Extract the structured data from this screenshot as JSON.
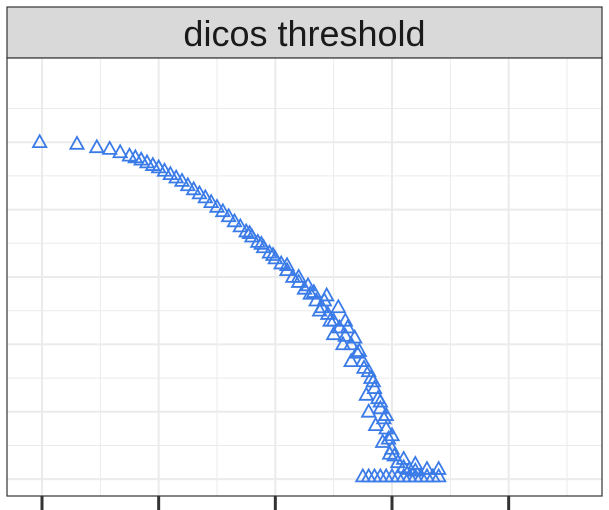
{
  "chart_data": {
    "type": "scatter",
    "panel_title": "dicos threshold",
    "marker": "open-triangle",
    "marker_color": "#3a7be8",
    "strip_background": "#d9d9d9",
    "panel_border_color": "#333333",
    "grid": true,
    "grid_color": "#ebebeb",
    "xlim": [
      -0.3,
      4.8
    ],
    "ylim": [
      -0.05,
      1.25
    ],
    "x_major_ticks": [
      0,
      1,
      2,
      3,
      4
    ],
    "x_minor_ticks": [
      0.5,
      1.5,
      2.5,
      3.5,
      4.5
    ],
    "y_major_ticks": [
      0,
      0.2,
      0.4,
      0.6,
      0.8,
      1.0
    ],
    "y_minor_ticks": [
      0.1,
      0.3,
      0.5,
      0.7,
      0.9,
      1.1
    ],
    "series": [
      {
        "points": [
          [
            -0.02,
            1.0
          ],
          [
            0.3,
            0.995
          ],
          [
            0.47,
            0.985
          ],
          [
            0.58,
            0.98
          ],
          [
            0.67,
            0.97
          ],
          [
            0.75,
            0.96
          ],
          [
            0.8,
            0.955
          ],
          [
            0.85,
            0.948
          ],
          [
            0.9,
            0.94
          ],
          [
            0.95,
            0.932
          ],
          [
            1.0,
            0.925
          ],
          [
            1.05,
            0.915
          ],
          [
            1.1,
            0.905
          ],
          [
            1.15,
            0.895
          ],
          [
            1.2,
            0.885
          ],
          [
            1.25,
            0.872
          ],
          [
            1.3,
            0.86
          ],
          [
            1.35,
            0.848
          ],
          [
            1.4,
            0.836
          ],
          [
            1.45,
            0.822
          ],
          [
            1.5,
            0.808
          ],
          [
            1.55,
            0.795
          ],
          [
            1.6,
            0.78
          ],
          [
            1.65,
            0.765
          ],
          [
            1.7,
            0.75
          ],
          [
            1.75,
            0.735
          ],
          [
            1.8,
            0.72
          ],
          [
            1.85,
            0.704
          ],
          [
            1.9,
            0.688
          ],
          [
            1.95,
            0.672
          ],
          [
            2.0,
            0.655
          ],
          [
            2.05,
            0.64
          ],
          [
            2.1,
            0.62
          ],
          [
            2.15,
            0.6
          ],
          [
            2.2,
            0.585
          ],
          [
            2.25,
            0.565
          ],
          [
            2.3,
            0.55
          ],
          [
            2.35,
            0.53
          ],
          [
            2.4,
            0.51
          ],
          [
            2.45,
            0.49
          ],
          [
            2.5,
            0.47
          ],
          [
            2.55,
            0.45
          ],
          [
            2.6,
            0.425
          ],
          [
            2.65,
            0.4
          ],
          [
            2.7,
            0.375
          ],
          [
            2.75,
            0.35
          ],
          [
            2.8,
            0.32
          ],
          [
            2.82,
            0.3
          ],
          [
            2.85,
            0.27
          ],
          [
            2.88,
            0.24
          ],
          [
            2.9,
            0.21
          ],
          [
            2.93,
            0.18
          ],
          [
            2.95,
            0.15
          ],
          [
            2.97,
            0.12
          ],
          [
            3.0,
            0.09
          ],
          [
            3.02,
            0.07
          ],
          [
            3.05,
            0.05
          ],
          [
            3.1,
            0.035
          ],
          [
            3.15,
            0.03
          ],
          [
            3.2,
            0.025
          ],
          [
            2.33,
            0.555
          ],
          [
            2.42,
            0.53
          ],
          [
            2.54,
            0.51
          ],
          [
            2.47,
            0.47
          ],
          [
            2.62,
            0.45
          ],
          [
            2.38,
            0.5
          ],
          [
            2.68,
            0.42
          ],
          [
            2.58,
            0.4
          ],
          [
            2.72,
            0.38
          ],
          [
            2.5,
            0.43
          ],
          [
            2.76,
            0.33
          ],
          [
            2.65,
            0.35
          ],
          [
            2.84,
            0.29
          ],
          [
            2.78,
            0.25
          ],
          [
            2.9,
            0.23
          ],
          [
            2.8,
            0.2
          ],
          [
            2.95,
            0.19
          ],
          [
            2.86,
            0.16
          ],
          [
            3.0,
            0.13
          ],
          [
            2.92,
            0.11
          ],
          [
            2.98,
            0.075
          ],
          [
            3.1,
            0.06
          ],
          [
            3.2,
            0.045
          ],
          [
            3.3,
            0.03
          ],
          [
            3.4,
            0.03
          ],
          [
            2.2,
            0.6
          ],
          [
            2.1,
            0.635
          ],
          [
            1.98,
            0.665
          ],
          [
            1.88,
            0.698
          ],
          [
            1.78,
            0.73
          ],
          [
            2.28,
            0.575
          ],
          [
            2.44,
            0.545
          ],
          [
            2.6,
            0.47
          ],
          [
            2.75,
            0.008
          ],
          [
            2.85,
            0.008
          ],
          [
            2.95,
            0.008
          ],
          [
            3.05,
            0.008
          ],
          [
            3.15,
            0.008
          ],
          [
            3.25,
            0.008
          ],
          [
            3.35,
            0.008
          ],
          [
            2.8,
            0.008
          ],
          [
            3.0,
            0.008
          ],
          [
            3.2,
            0.008
          ],
          [
            3.4,
            0.008
          ],
          [
            2.9,
            0.008
          ],
          [
            3.1,
            0.008
          ],
          [
            3.3,
            0.008
          ]
        ]
      }
    ]
  }
}
